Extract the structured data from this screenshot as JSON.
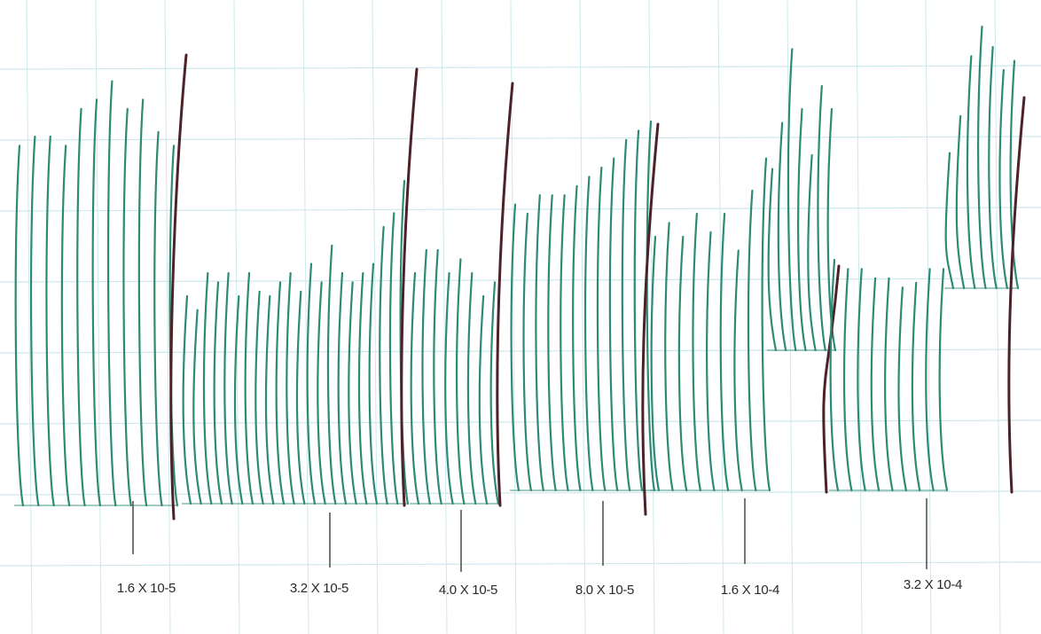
{
  "chart_data": {
    "type": "line",
    "title": "",
    "xlabel": "",
    "ylabel": "",
    "grid": true,
    "colors": {
      "paper": "#ffffff",
      "grid": "#cfe8ec",
      "response_trace": "#2e8a74",
      "wash_trace": "#4a2228",
      "marker": "#555555",
      "label": "#2a2a2a"
    },
    "dose_markers": [
      {
        "label": "1.6 X 10-5"
      },
      {
        "label": "3.2 X 10-5"
      },
      {
        "label": "4.0 X 10-5"
      },
      {
        "label": "8.0 X 10-5"
      },
      {
        "label": "1.6 X 10-4"
      },
      {
        "label": "3.2 X 10-4"
      }
    ],
    "segments": [
      {
        "contractions": [
          0.78,
          0.8,
          0.8,
          0.78,
          0.86,
          0.88,
          0.92,
          0.86,
          0.88,
          0.81,
          0.78
        ]
      },
      {
        "contractions": [
          0.45,
          0.42,
          0.5,
          0.48,
          0.5,
          0.45,
          0.5,
          0.46,
          0.45,
          0.48,
          0.5,
          0.46,
          0.52,
          0.48,
          0.56,
          0.5,
          0.48,
          0.5,
          0.52,
          0.6,
          0.63,
          0.7
        ]
      },
      {
        "contractions": [
          0.5,
          0.55,
          0.55,
          0.5,
          0.53,
          0.5,
          0.45,
          0.48
        ]
      },
      {
        "contractions": [
          0.62,
          0.6,
          0.64,
          0.64,
          0.64,
          0.66,
          0.68,
          0.7,
          0.72,
          0.76,
          0.78,
          0.8
        ]
      },
      {
        "contractions": [
          0.55,
          0.58,
          0.55,
          0.6,
          0.56,
          0.6,
          0.52,
          0.65,
          0.72
        ]
      },
      {
        "contractions": [
          0.72,
          0.82,
          0.98,
          0.85,
          0.75,
          0.9,
          0.85
        ]
      },
      {
        "contractions": [
          0.5,
          0.48,
          0.48,
          0.46,
          0.46,
          0.44,
          0.45,
          0.48,
          0.48
        ]
      },
      {
        "contractions": [
          0.62,
          0.7,
          0.83,
          0.9,
          0.85,
          0.8,
          0.82
        ]
      }
    ]
  }
}
